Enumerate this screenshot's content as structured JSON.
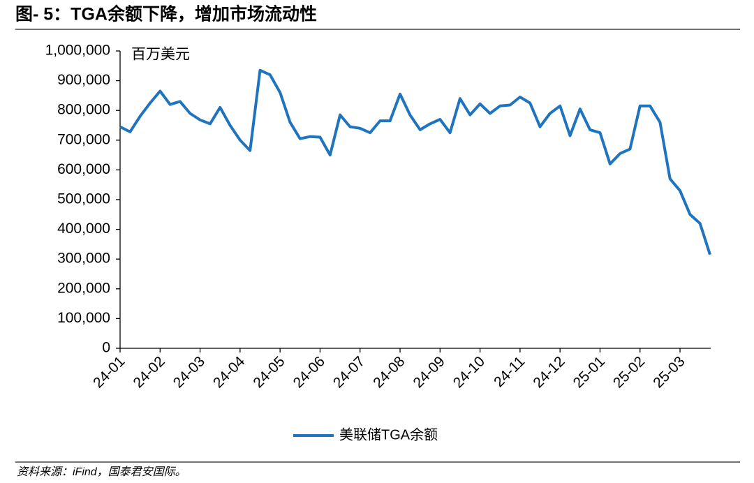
{
  "header": {
    "title": "图- 5：TGA余额下降，增加市场流动性"
  },
  "chart_data": {
    "type": "line",
    "y_unit_label": "百万美元",
    "categories": [
      "24-01",
      null,
      null,
      null,
      "24-02",
      null,
      null,
      null,
      "24-03",
      null,
      null,
      null,
      "24-04",
      null,
      null,
      null,
      "24-05",
      null,
      null,
      null,
      "24-06",
      null,
      null,
      null,
      "24-07",
      null,
      null,
      null,
      "24-08",
      null,
      null,
      null,
      "24-09",
      null,
      null,
      null,
      "24-10",
      null,
      null,
      null,
      "24-11",
      null,
      null,
      null,
      "24-12",
      null,
      null,
      null,
      "25-01",
      null,
      null,
      null,
      "25-02",
      null,
      null,
      null,
      "25-03",
      null,
      null,
      null
    ],
    "series": [
      {
        "name": "美联储TGA余额",
        "color": "#1f74bd",
        "values": [
          745000,
          728000,
          780000,
          825000,
          865000,
          820000,
          830000,
          790000,
          768000,
          755000,
          810000,
          750000,
          700000,
          665000,
          935000,
          920000,
          860000,
          760000,
          705000,
          712000,
          710000,
          650000,
          785000,
          745000,
          740000,
          725000,
          765000,
          765000,
          855000,
          785000,
          735000,
          755000,
          770000,
          725000,
          840000,
          785000,
          822000,
          790000,
          815000,
          818000,
          845000,
          825000,
          745000,
          790000,
          815000,
          715000,
          805000,
          735000,
          725000,
          620000,
          655000,
          670000,
          815000,
          815000,
          760000,
          570000,
          530000,
          450000,
          420000,
          315000
        ]
      }
    ],
    "ylim": [
      0,
      1000000
    ],
    "yticks": [
      0,
      {
        "value": 100000,
        "label": "100,000"
      },
      {
        "value": 200000,
        "label": "200,000"
      },
      {
        "value": 300000,
        "label": "300,000"
      },
      {
        "value": 400000,
        "label": "400,000"
      },
      {
        "value": 500000,
        "label": "500,000"
      },
      {
        "value": 600000,
        "label": "600,000"
      },
      {
        "value": 700000,
        "label": "700,000"
      },
      {
        "value": 800000,
        "label": "800,000"
      },
      {
        "value": 900000,
        "label": "900,000"
      },
      {
        "value": 1000000,
        "label": "1,000,000"
      }
    ],
    "grid": false
  },
  "footer": {
    "source": "资料来源：iFind，国泰君安国际。"
  }
}
